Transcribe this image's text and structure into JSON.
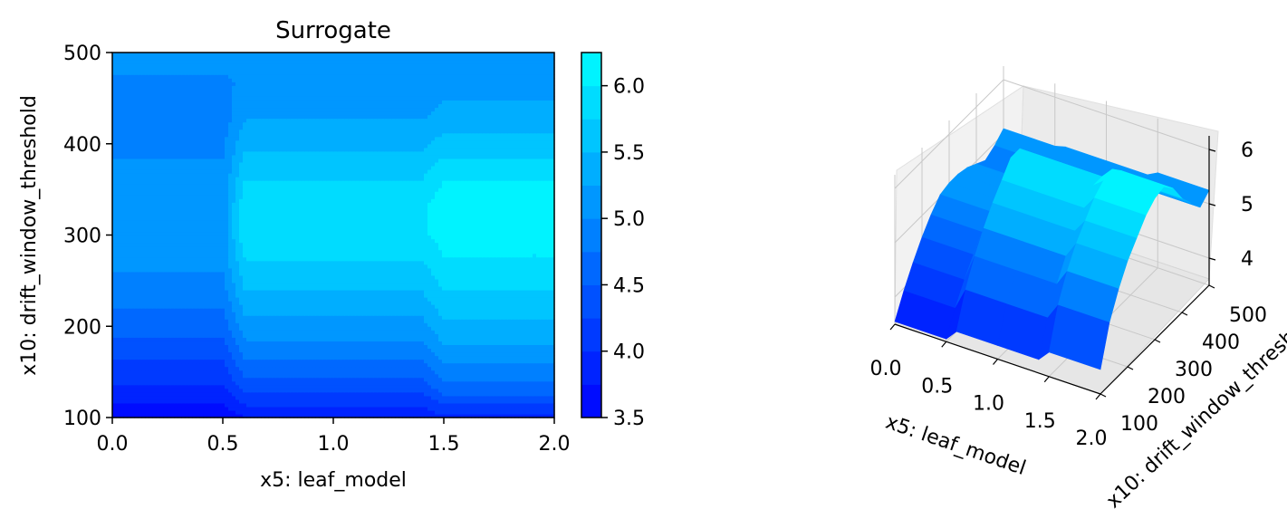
{
  "chart_data": [
    {
      "type": "contour",
      "title": "Surrogate",
      "xlabel": "x5: leaf_model",
      "ylabel": "x10: drift_window_threshold",
      "xlim": [
        0.0,
        2.0
      ],
      "ylim": [
        100,
        500
      ],
      "xticks": [
        "0.0",
        "0.5",
        "1.0",
        "1.5",
        "2.0"
      ],
      "yticks": [
        "100",
        "200",
        "300",
        "400",
        "500"
      ],
      "x": [
        0.0,
        0.5,
        0.6,
        1.0,
        1.4,
        1.5,
        2.0
      ],
      "y": [
        100,
        133,
        167,
        200,
        233,
        267,
        300,
        333,
        367,
        400,
        433,
        467,
        500
      ],
      "z": [
        [
          3.55,
          3.55,
          3.75,
          3.75,
          3.75,
          3.95,
          3.95
        ],
        [
          3.95,
          3.95,
          4.35,
          4.35,
          4.35,
          4.65,
          4.65
        ],
        [
          4.3,
          4.3,
          4.8,
          4.8,
          4.8,
          5.1,
          5.1
        ],
        [
          4.6,
          4.6,
          5.15,
          5.15,
          5.15,
          5.45,
          5.45
        ],
        [
          4.85,
          4.85,
          5.45,
          5.45,
          5.45,
          5.7,
          5.7
        ],
        [
          5.05,
          5.05,
          5.7,
          5.7,
          5.7,
          5.95,
          5.95
        ],
        [
          5.1,
          5.1,
          5.95,
          5.95,
          5.95,
          6.1,
          6.1
        ],
        [
          5.1,
          5.1,
          5.95,
          5.95,
          5.95,
          6.15,
          6.15
        ],
        [
          5.05,
          5.05,
          5.7,
          5.7,
          5.7,
          5.95,
          5.95
        ],
        [
          4.95,
          4.95,
          5.45,
          5.45,
          5.45,
          5.6,
          5.6
        ],
        [
          4.85,
          4.85,
          5.2,
          5.2,
          5.2,
          5.35,
          5.35
        ],
        [
          4.95,
          4.95,
          5.05,
          5.05,
          5.05,
          5.1,
          5.1
        ],
        [
          5.1,
          5.1,
          5.15,
          5.15,
          5.15,
          5.25,
          5.25
        ]
      ],
      "colorbar": {
        "range": [
          3.5,
          6.25
        ],
        "ticks": [
          "3.5",
          "4.0",
          "4.5",
          "5.0",
          "5.5",
          "6.0"
        ],
        "colormap": {
          "low": "#0000ff",
          "high": "#00ffff"
        }
      }
    },
    {
      "type": "surface3d",
      "xlabel": "x5: leaf_model",
      "ylabel": "x10: drift_window_threshold",
      "xticks": [
        "0.0",
        "0.5",
        "1.0",
        "1.5",
        "2.0"
      ],
      "yticks": [
        "100",
        "200",
        "300",
        "400",
        "500"
      ],
      "zticks": [
        "4",
        "5",
        "6"
      ],
      "xlim": [
        0.0,
        2.0
      ],
      "ylim": [
        100,
        500
      ],
      "zlim": [
        3.5,
        6.25
      ],
      "grid": true
    }
  ]
}
